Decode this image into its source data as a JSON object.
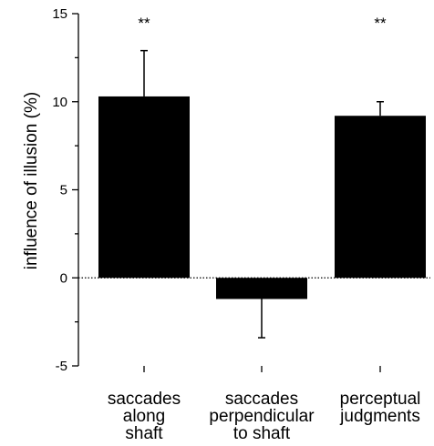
{
  "chart_data": {
    "type": "bar",
    "ylabel": "influence of illusion (%)",
    "xlabel": "",
    "ylim": [
      -5,
      15
    ],
    "yticks": [
      -5,
      0,
      5,
      10,
      15
    ],
    "zero_line": "dotted",
    "grid": false,
    "colors": {
      "bar": "#000000",
      "axis": "#000000"
    },
    "categories": [
      [
        "saccades",
        "along",
        "shaft"
      ],
      [
        "saccades",
        "perpendicular",
        "to shaft"
      ],
      [
        "perceptual",
        "judgments"
      ]
    ],
    "values": [
      10.3,
      -1.2,
      9.2
    ],
    "error_bars": [
      {
        "direction": "up",
        "value": 12.9
      },
      {
        "direction": "down",
        "value": -3.4
      },
      {
        "direction": "up",
        "value": 10.0
      }
    ],
    "significance": [
      "**",
      "",
      "**"
    ]
  }
}
